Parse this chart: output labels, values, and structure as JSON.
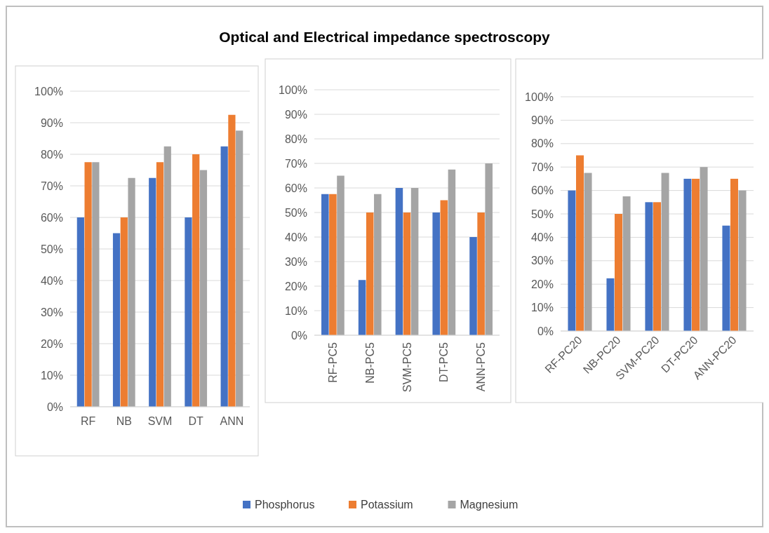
{
  "chart_data": [
    {
      "type": "bar",
      "categories": [
        "RF",
        "NB",
        "SVM",
        "DT",
        "ANN"
      ],
      "series": [
        {
          "name": "Phosphorus",
          "color": "#4472c4",
          "values": [
            60,
            55,
            72.5,
            60,
            82.5
          ]
        },
        {
          "name": "Potassium",
          "color": "#ed7d31",
          "values": [
            77.5,
            60,
            77.5,
            80,
            92.5
          ]
        },
        {
          "name": "Magnesium",
          "color": "#a5a5a5",
          "values": [
            77.5,
            72.5,
            82.5,
            75,
            87.5
          ]
        }
      ],
      "ylim": [
        0,
        100
      ],
      "yticks": [
        {
          "value": 0,
          "label": "0%"
        },
        {
          "value": 10,
          "label": "10%"
        },
        {
          "value": 20,
          "label": "20%"
        },
        {
          "value": 30,
          "label": "30%"
        },
        {
          "value": 40,
          "label": "40%"
        },
        {
          "value": 50,
          "label": "50%"
        },
        {
          "value": 60,
          "label": "60%"
        },
        {
          "value": 70,
          "label": "70%"
        },
        {
          "value": 80,
          "label": "80%"
        },
        {
          "value": 90,
          "label": "90%"
        },
        {
          "value": 100,
          "label": "100%"
        }
      ],
      "grid": "y",
      "legend": "bottom"
    },
    {
      "type": "bar",
      "title": "Optical and Electrical impedance spectroscopy",
      "categories": [
        "RF-PC5",
        "NB-PC5",
        "SVM-PC5",
        "DT-PC5",
        "ANN-PC5"
      ],
      "series": [
        {
          "name": "Phosphorus",
          "color": "#4472c4",
          "values": [
            57.5,
            22.5,
            60,
            50,
            40
          ]
        },
        {
          "name": "Potassium",
          "color": "#ed7d31",
          "values": [
            57.5,
            50,
            50,
            55,
            50
          ]
        },
        {
          "name": "Magnesium",
          "color": "#a5a5a5",
          "values": [
            65,
            57.5,
            60,
            67.5,
            70
          ]
        }
      ],
      "ylim": [
        0,
        100
      ],
      "yticks": [
        {
          "value": 0,
          "label": "0%"
        },
        {
          "value": 10,
          "label": "10%"
        },
        {
          "value": 20,
          "label": "20%"
        },
        {
          "value": 30,
          "label": "30%"
        },
        {
          "value": 40,
          "label": "40%"
        },
        {
          "value": 50,
          "label": "50%"
        },
        {
          "value": 60,
          "label": "60%"
        },
        {
          "value": 70,
          "label": "70%"
        },
        {
          "value": 80,
          "label": "80%"
        },
        {
          "value": 90,
          "label": "90%"
        },
        {
          "value": 100,
          "label": "100%"
        }
      ],
      "grid": "y",
      "legend": "bottom"
    },
    {
      "type": "bar",
      "categories": [
        "RF-PC20",
        "NB-PC20",
        "SVM-PC20",
        "DT-PC20",
        "ANN-PC20"
      ],
      "series": [
        {
          "name": "Phosphorus",
          "color": "#4472c4",
          "values": [
            60,
            22.5,
            55,
            65,
            45
          ]
        },
        {
          "name": "Potassium",
          "color": "#ed7d31",
          "values": [
            75,
            50,
            55,
            65,
            65
          ]
        },
        {
          "name": "Magnesium",
          "color": "#a5a5a5",
          "values": [
            67.5,
            57.5,
            67.5,
            70,
            60
          ]
        }
      ],
      "ylim": [
        0,
        100
      ],
      "yticks": [
        {
          "value": 0,
          "label": "0%"
        },
        {
          "value": 10,
          "label": "10%"
        },
        {
          "value": 20,
          "label": "20%"
        },
        {
          "value": 30,
          "label": "30%"
        },
        {
          "value": 40,
          "label": "40%"
        },
        {
          "value": 50,
          "label": "50%"
        },
        {
          "value": 60,
          "label": "60%"
        },
        {
          "value": 70,
          "label": "70%"
        },
        {
          "value": 80,
          "label": "80%"
        },
        {
          "value": 90,
          "label": "90%"
        },
        {
          "value": 100,
          "label": "100%"
        }
      ],
      "grid": "y",
      "legend": "bottom"
    }
  ]
}
